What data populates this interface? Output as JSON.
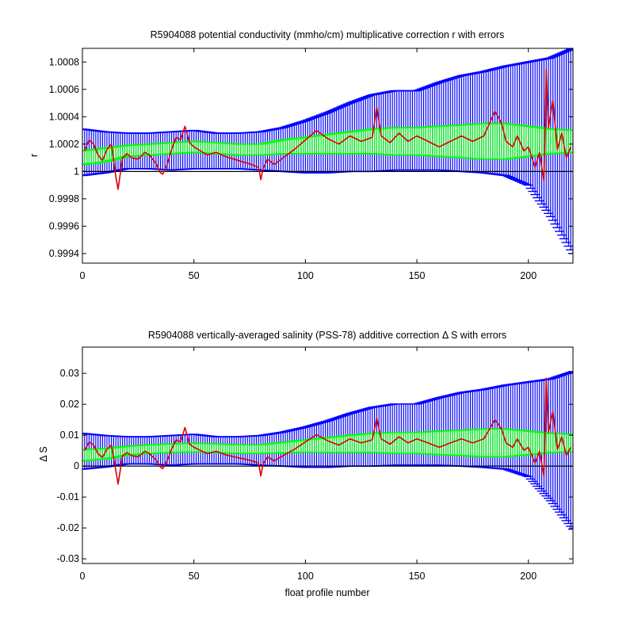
{
  "chart_data": [
    {
      "type": "line",
      "title": "R5904088 potential conductivity (mmho/cm) multiplicative correction r with errors",
      "xlabel": "",
      "ylabel": "r",
      "xlim": [
        0,
        220
      ],
      "ylim": [
        0.99933,
        1.0009
      ],
      "xticks": [
        0,
        50,
        100,
        150,
        200
      ],
      "xtick_labels": [
        "0",
        "50",
        "100",
        "150",
        "200"
      ],
      "yticks": [
        0.9994,
        0.9996,
        0.9998,
        1.0,
        1.0002,
        1.0004,
        1.0006,
        1.0008
      ],
      "ytick_labels": [
        "0.9994",
        "0.9996",
        "0.9998",
        "1",
        "1.0002",
        "1.0004",
        "1.0006",
        "1.0008"
      ],
      "reference_line": 1.0,
      "colors": {
        "blue_errors": "#0000ff",
        "green_errors": "#00ff00",
        "red_line": "#dd0000",
        "reference": "#000000"
      },
      "series": [
        {
          "style": "red-line",
          "x": [
            1,
            3,
            5,
            7,
            9,
            11,
            13,
            15,
            16,
            18,
            20,
            22,
            25,
            28,
            30,
            33,
            35,
            36,
            38,
            40,
            42,
            44,
            46,
            48,
            50,
            53,
            56,
            60,
            64,
            68,
            72,
            76,
            79,
            80,
            81,
            83,
            86,
            90,
            95,
            100,
            105,
            110,
            115,
            120,
            125,
            130,
            132,
            134,
            138,
            142,
            146,
            150,
            155,
            160,
            165,
            170,
            175,
            180,
            185,
            188,
            190,
            193,
            195,
            198,
            200,
            203,
            205,
            207,
            208,
            209,
            211,
            213,
            215,
            217,
            219
          ],
          "y": [
            1.00015,
            1.00023,
            1.0002,
            1.00012,
            1.00008,
            1.00016,
            1.0002,
            0.99996,
            0.99987,
            1.0001,
            1.00013,
            1.0001,
            1.00009,
            1.00014,
            1.00012,
            1.00006,
            0.99999,
            0.99998,
            1.00005,
            1.00016,
            1.00025,
            1.00023,
            1.00033,
            1.00021,
            1.00018,
            1.00015,
            1.00012,
            1.00014,
            1.00011,
            1.00009,
            1.00007,
            1.00005,
            1.00003,
            0.99994,
            1.00002,
            1.00009,
            1.00005,
            1.0001,
            1.00016,
            1.00023,
            1.0003,
            1.00024,
            1.0002,
            1.00026,
            1.00022,
            1.00025,
            1.00047,
            1.00026,
            1.00021,
            1.00028,
            1.00022,
            1.00026,
            1.00022,
            1.00018,
            1.00022,
            1.00026,
            1.00022,
            1.00026,
            1.00044,
            1.00035,
            1.00022,
            1.00018,
            1.00026,
            1.00015,
            1.00018,
            1.00003,
            1.00014,
            0.99993,
            1.00075,
            1.00032,
            1.00052,
            1.00016,
            1.00028,
            1.0001,
            1.00018
          ]
        },
        {
          "style": "green-errorbar",
          "x": [
            0,
            10,
            20,
            30,
            40,
            50,
            60,
            70,
            80,
            90,
            100,
            110,
            120,
            130,
            140,
            150,
            160,
            170,
            180,
            190,
            200,
            210,
            220
          ],
          "y": [
            1.0001,
            1.00012,
            1.00015,
            1.00016,
            1.00017,
            1.00018,
            1.00017,
            1.00016,
            1.00016,
            1.00018,
            1.00019,
            1.0002,
            1.00021,
            1.00022,
            1.00022,
            1.00022,
            1.00022,
            1.00022,
            1.00022,
            1.00022,
            1.00022,
            1.00022,
            1.00022
          ],
          "err": [
            5e-05,
            5e-05,
            4e-05,
            4e-05,
            4e-05,
            4e-05,
            4e-05,
            4e-05,
            4e-05,
            5e-05,
            6e-05,
            7e-05,
            8e-05,
            9e-05,
            0.0001,
            0.0001,
            0.00011,
            0.00012,
            0.00013,
            0.00013,
            0.00011,
            9e-05,
            8e-05
          ]
        },
        {
          "style": "blue-errorbar",
          "x": [
            0,
            10,
            20,
            30,
            40,
            50,
            60,
            70,
            80,
            90,
            100,
            110,
            120,
            130,
            140,
            150,
            160,
            170,
            180,
            190,
            200,
            210,
            220
          ],
          "y": [
            1.00014,
            1.00014,
            1.00015,
            1.00015,
            1.00015,
            1.00016,
            1.00015,
            1.00015,
            1.00015,
            1.00016,
            1.00018,
            1.00021,
            1.00025,
            1.00028,
            1.0003,
            1.0003,
            1.00033,
            1.00035,
            1.00036,
            1.00037,
            1.00035,
            1.00025,
            1.00015
          ],
          "err": [
            0.00017,
            0.00015,
            0.00013,
            0.00013,
            0.00014,
            0.00014,
            0.00013,
            0.00013,
            0.00014,
            0.00016,
            0.00019,
            0.00022,
            0.00025,
            0.00028,
            0.00029,
            0.00029,
            0.00032,
            0.00035,
            0.00037,
            0.0004,
            0.00045,
            0.00058,
            0.00075
          ]
        }
      ]
    },
    {
      "type": "line",
      "title": "R5904088 vertically-averaged salinity (PSS-78) additive correction Δ S with errors",
      "xlabel": "float profile number",
      "ylabel": "Δ S",
      "xlim": [
        0,
        220
      ],
      "ylim": [
        -0.0315,
        0.0385
      ],
      "xticks": [
        0,
        50,
        100,
        150,
        200
      ],
      "xtick_labels": [
        "0",
        "50",
        "100",
        "150",
        "200"
      ],
      "yticks": [
        -0.03,
        -0.02,
        -0.01,
        0,
        0.01,
        0.02,
        0.03
      ],
      "ytick_labels": [
        "-0.03",
        "-0.02",
        "-0.01",
        "0",
        "0.01",
        "0.02",
        "0.03"
      ],
      "reference_line": 0,
      "colors": {
        "blue_errors": "#0000ff",
        "green_errors": "#00ff00",
        "red_line": "#dd0000",
        "reference": "#000000"
      },
      "series": [
        {
          "style": "red-line",
          "x": [
            1,
            3,
            5,
            7,
            9,
            11,
            13,
            15,
            16,
            18,
            20,
            22,
            25,
            28,
            30,
            33,
            35,
            36,
            38,
            40,
            42,
            44,
            46,
            48,
            50,
            53,
            56,
            60,
            64,
            68,
            72,
            76,
            79,
            80,
            81,
            83,
            86,
            90,
            95,
            100,
            105,
            110,
            115,
            120,
            125,
            130,
            132,
            134,
            138,
            142,
            146,
            150,
            155,
            160,
            165,
            170,
            175,
            180,
            185,
            188,
            190,
            193,
            195,
            198,
            200,
            203,
            205,
            207,
            208,
            209,
            211,
            213,
            215,
            217,
            219
          ],
          "y": [
            0.005,
            0.0078,
            0.0068,
            0.004,
            0.0028,
            0.0055,
            0.0068,
            -0.0015,
            -0.0058,
            0.0033,
            0.0044,
            0.0034,
            0.003,
            0.0048,
            0.0041,
            0.002,
            -0.0003,
            -0.0008,
            0.0017,
            0.0055,
            0.0085,
            0.0078,
            0.0125,
            0.0071,
            0.0061,
            0.0051,
            0.004,
            0.0048,
            0.0037,
            0.003,
            0.0024,
            0.0017,
            0.001,
            -0.0032,
            0.0007,
            0.003,
            0.0017,
            0.0034,
            0.0054,
            0.0078,
            0.0102,
            0.0082,
            0.0068,
            0.0088,
            0.0075,
            0.0085,
            0.0155,
            0.0088,
            0.0071,
            0.0095,
            0.0075,
            0.0088,
            0.0075,
            0.0061,
            0.0075,
            0.0088,
            0.0075,
            0.0088,
            0.015,
            0.0119,
            0.0075,
            0.0061,
            0.0088,
            0.0051,
            0.0061,
            0.001,
            0.0048,
            -0.0032,
            0.0285,
            0.0109,
            0.0177,
            0.0054,
            0.0095,
            0.0034,
            0.0061
          ]
        },
        {
          "style": "green-errorbar",
          "x": [
            0,
            10,
            20,
            30,
            40,
            50,
            60,
            70,
            80,
            90,
            100,
            110,
            120,
            130,
            140,
            150,
            160,
            170,
            180,
            190,
            200,
            210,
            220
          ],
          "y": [
            0.0035,
            0.004,
            0.005,
            0.0055,
            0.0058,
            0.006,
            0.0058,
            0.0055,
            0.0055,
            0.006,
            0.0065,
            0.0068,
            0.0072,
            0.0075,
            0.0075,
            0.0075,
            0.0075,
            0.0075,
            0.0075,
            0.0075,
            0.0075,
            0.0075,
            0.0075
          ],
          "err": [
            0.0018,
            0.0017,
            0.0014,
            0.0014,
            0.0014,
            0.0014,
            0.0014,
            0.0014,
            0.0014,
            0.0017,
            0.002,
            0.0024,
            0.0028,
            0.0031,
            0.0034,
            0.0034,
            0.0038,
            0.0041,
            0.0045,
            0.0045,
            0.0038,
            0.0031,
            0.0028
          ]
        },
        {
          "style": "blue-errorbar",
          "x": [
            0,
            10,
            20,
            30,
            40,
            50,
            60,
            70,
            80,
            90,
            100,
            110,
            120,
            130,
            140,
            150,
            160,
            170,
            180,
            190,
            200,
            210,
            220
          ],
          "y": [
            0.0048,
            0.0048,
            0.0051,
            0.0051,
            0.0051,
            0.0055,
            0.0051,
            0.0051,
            0.0051,
            0.0055,
            0.0061,
            0.0071,
            0.0085,
            0.0095,
            0.0102,
            0.0102,
            0.0112,
            0.0119,
            0.0122,
            0.0126,
            0.0119,
            0.0085,
            0.0051
          ],
          "err": [
            0.0058,
            0.0051,
            0.0044,
            0.0044,
            0.0048,
            0.0048,
            0.0044,
            0.0044,
            0.0048,
            0.0055,
            0.0065,
            0.0075,
            0.0085,
            0.0095,
            0.0099,
            0.0099,
            0.0109,
            0.0119,
            0.0126,
            0.0136,
            0.0153,
            0.0197,
            0.0255
          ]
        }
      ]
    }
  ]
}
